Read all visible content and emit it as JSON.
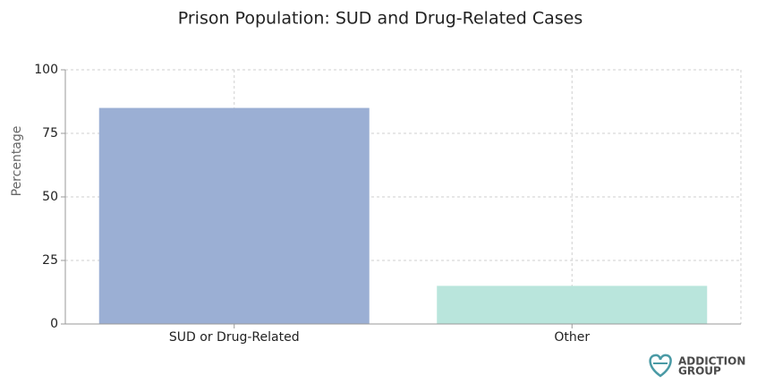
{
  "chart_data": {
    "type": "bar",
    "title": "Prison Population: SUD and Drug-Related Cases",
    "ylabel": "Percentage",
    "categories": [
      "SUD or Drug-Related",
      "Other"
    ],
    "values": [
      85,
      15
    ],
    "colors": [
      "#9bafd4",
      "#b9e5dc"
    ],
    "ylim": [
      0,
      100
    ],
    "yticks": [
      0,
      25,
      50,
      75,
      100
    ],
    "grid": true
  },
  "brand": [
    "ADDICTION",
    "GROUP"
  ]
}
